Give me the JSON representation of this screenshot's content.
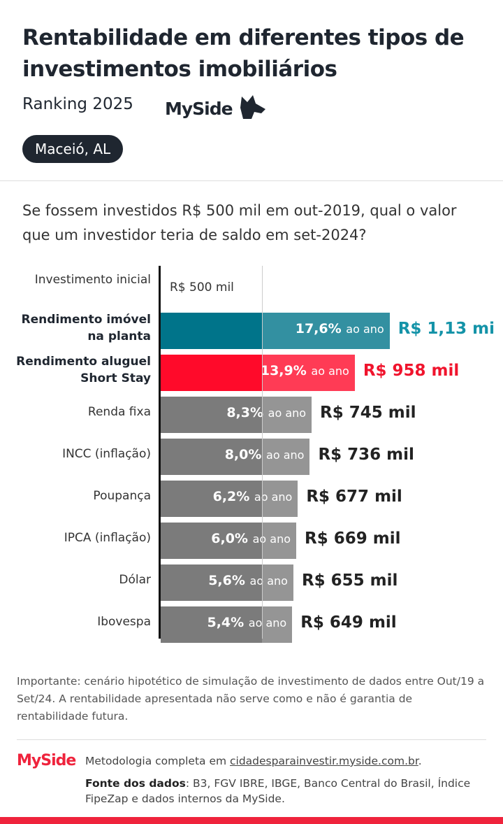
{
  "header": {
    "title": "Rentabilidade em diferentes tipos de investimentos imobiliários",
    "subtitle": "Ranking 2025",
    "brand": "MySide",
    "location": "Maceió, AL"
  },
  "chart_data": {
    "type": "bar",
    "orientation": "horizontal",
    "title": "Se fossem investidos R$ 500 mil em out-2019, qual o valor que um investidor teria de saldo em set-2024?",
    "initial": {
      "category": "Investimento inicial",
      "value": 500,
      "value_label": "R$ 500 mil"
    },
    "categories": [
      "Rendimento imóvel na planta",
      "Rendimento aluguel Short Stay",
      "Renda fixa",
      "INCC (inflação)",
      "Poupança",
      "IPCA (inflação)",
      "Dólar",
      "Ibovespa"
    ],
    "values": [
      1130,
      958,
      745,
      736,
      677,
      669,
      655,
      649
    ],
    "value_labels": [
      "R$ 1,13 mi",
      "R$ 958 mil",
      "R$ 745 mil",
      "R$ 736 mil",
      "R$ 677 mil",
      "R$ 669 mil",
      "R$ 655 mil",
      "R$ 649 mil"
    ],
    "rates": [
      17.6,
      13.9,
      8.3,
      8.0,
      6.2,
      6.0,
      5.6,
      5.4
    ],
    "rate_labels": [
      "17,6%",
      "13,9%",
      "8,3%",
      "8,0%",
      "6,2%",
      "6,0%",
      "5,6%",
      "5,4%"
    ],
    "rate_unit": "ao ano",
    "colors": [
      "#00748a",
      "#ff0a2a",
      "#7b7b7b",
      "#7b7b7b",
      "#7b7b7b",
      "#7b7b7b",
      "#7b7b7b",
      "#7b7b7b"
    ],
    "label_colors": [
      "#1493a8",
      "#f0142d",
      "#222222",
      "#222222",
      "#222222",
      "#222222",
      "#222222",
      "#222222"
    ]
  },
  "footer": {
    "note": "Importante: cenário hipotético de simulação de investimento de dados entre Out/19 a Set/24. A rentabilidade apresentada não serve como e não é garantia de rentabilidade futura.",
    "brand": "MySide",
    "method": "Metodologia completa em",
    "link": "cidadesparainvestir.myside.com.br",
    "method_end": ".",
    "source_label": "Fonte dos dados",
    "source": ": B3, FGV IBRE, IBGE, Banco Central do Brasil, Índice FipeZap e dados internos da MySide."
  }
}
